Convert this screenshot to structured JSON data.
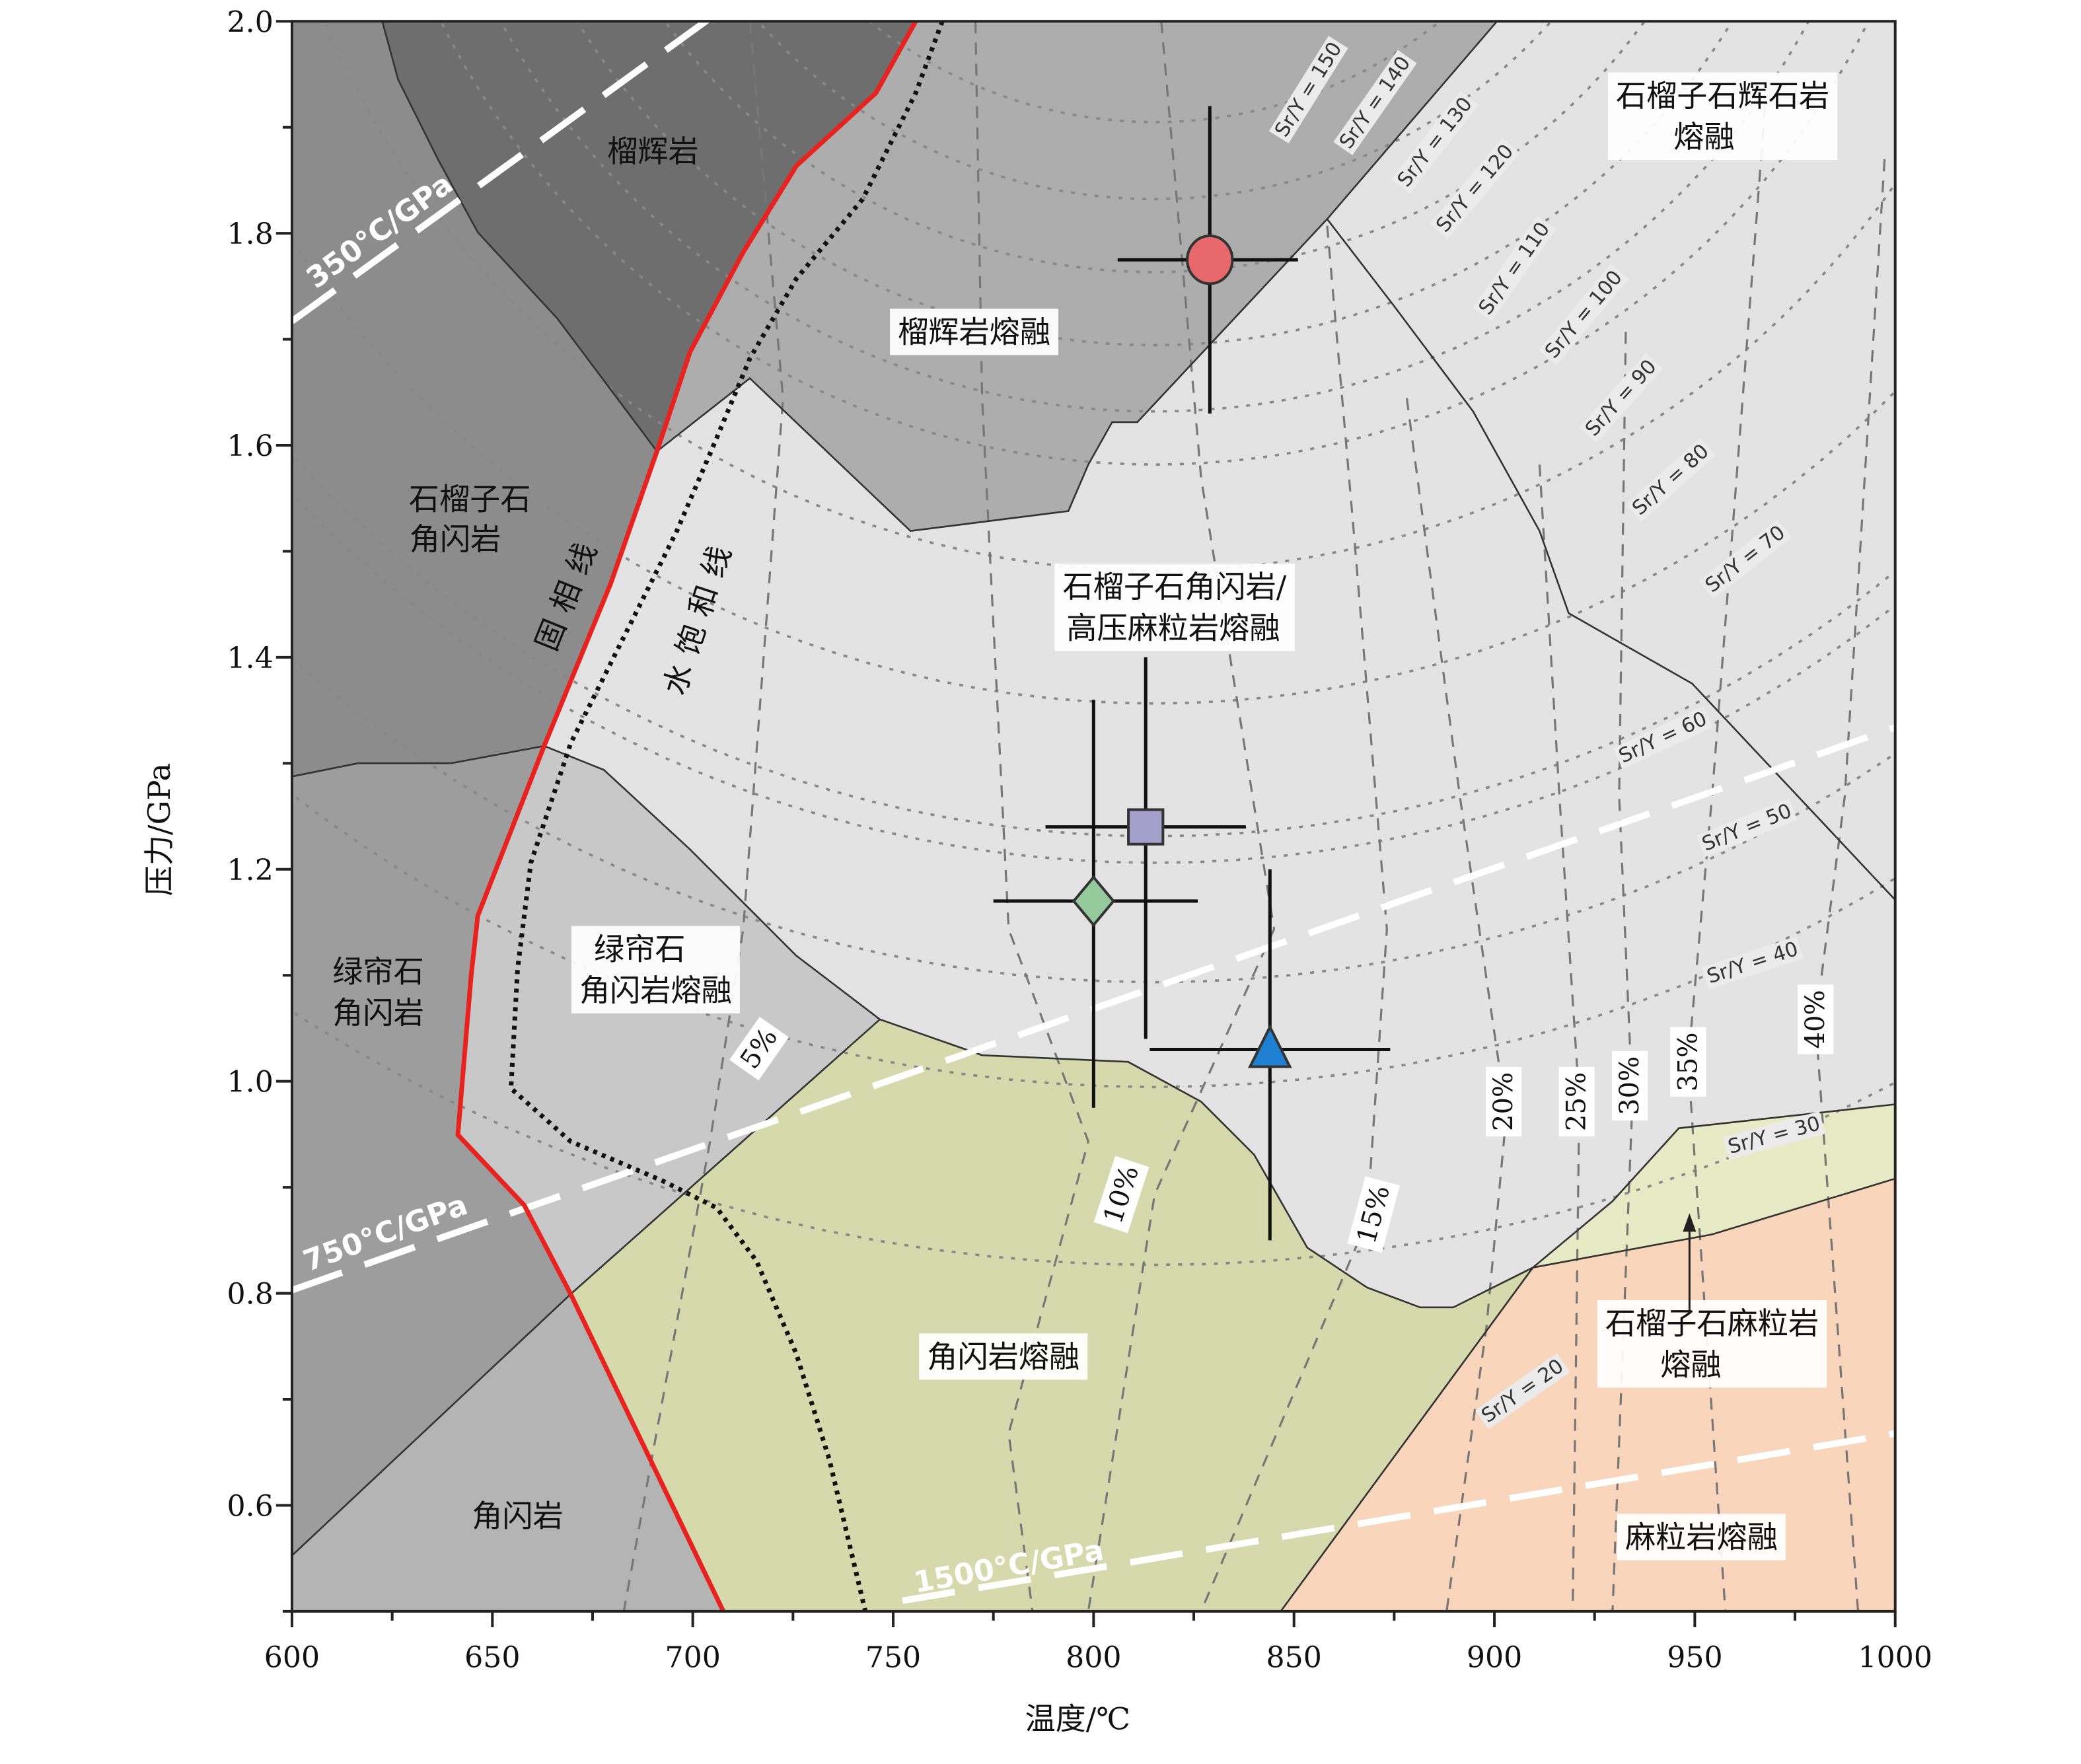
{
  "chart_data": {
    "type": "scatter",
    "xlabel": "温度/℃",
    "ylabel": "压力/GPa",
    "xlim": [
      600,
      1000
    ],
    "ylim": [
      0.5,
      2.0
    ],
    "x_ticks": [
      "600",
      "650",
      "700",
      "750",
      "800",
      "850",
      "900",
      "950",
      "1000"
    ],
    "y_ticks": [
      "0.6",
      "0.8",
      "1.0",
      "1.2",
      "1.4",
      "1.6",
      "1.8",
      "2.0"
    ],
    "grid": false,
    "points": [
      {
        "marker": "circle",
        "color": "#e8696b",
        "x": 829,
        "y": 1.775,
        "x_range": [
          806,
          851
        ],
        "y_range": [
          1.63,
          1.92
        ]
      },
      {
        "marker": "square",
        "color": "#a39fcb",
        "x": 813,
        "y": 1.24,
        "x_range": [
          788,
          838
        ],
        "y_range": [
          1.04,
          1.4
        ]
      },
      {
        "marker": "diamond",
        "color": "#95c99b",
        "x": 800,
        "y": 1.17,
        "x_range": [
          775,
          826
        ],
        "y_range": [
          0.975,
          1.36
        ]
      },
      {
        "marker": "triangle",
        "color": "#1f7fd1",
        "x": 844,
        "y": 1.03,
        "x_range": [
          814,
          874
        ],
        "y_range": [
          0.85,
          1.2
        ]
      }
    ],
    "fields": {
      "eclogite": "榴辉岩",
      "grt_amphibolite": [
        "石榴子石",
        "角闪岩"
      ],
      "ep_amphibolite": [
        "绿帘石",
        "角闪岩"
      ],
      "amphibolite": "角闪岩",
      "eclogite_melt": "榴辉岩熔融",
      "grt_amph_hp_granulite_melt": [
        "石榴子石角闪岩/",
        "高压麻粒岩熔融"
      ],
      "ep_amph_melt": [
        "绿帘石",
        "角闪岩熔融"
      ],
      "amph_melt": "角闪岩熔融",
      "grt_pyroxenite_melt": [
        "石榴子石辉石岩",
        "熔融"
      ],
      "grt_granulite_melt": [
        "石榴子石麻粒岩",
        "熔融"
      ],
      "granulite_melt": "麻粒岩熔融"
    },
    "boundaries": {
      "solidus": "固相线",
      "water_saturated": "水饱和线"
    },
    "geotherms": [
      "350°C/GPa",
      "750°C/GPa",
      "1500°C/GPa"
    ],
    "sry_contours": [
      "Sr/Y = 150",
      "Sr/Y = 140",
      "Sr/Y = 130",
      "Sr/Y = 120",
      "Sr/Y = 110",
      "Sr/Y = 100",
      "Sr/Y = 90",
      "Sr/Y = 80",
      "Sr/Y = 70",
      "Sr/Y = 60",
      "Sr/Y = 50",
      "Sr/Y = 40",
      "Sr/Y = 30",
      "Sr/Y = 20"
    ],
    "melt_fractions": [
      "5%",
      "10%",
      "15%",
      "20%",
      "25%",
      "30%",
      "35%",
      "40%"
    ],
    "colors": {
      "solidus": "#e8231f",
      "eclogite": "#6e6e6e",
      "grt_amphibolite": "#8c8c8c",
      "ep_amphibolite": "#9d9d9d",
      "amphibolite": "#b4b4b4",
      "eclogite_melt": "#adadad",
      "main_melt": "#e3e3e3",
      "ep_amph_melt": "#c8c8c8",
      "amph_melt": "#d5d9ab",
      "grt_granulite_melt": "#e7ebc5",
      "granulite_melt": "#f9d5bc"
    }
  }
}
